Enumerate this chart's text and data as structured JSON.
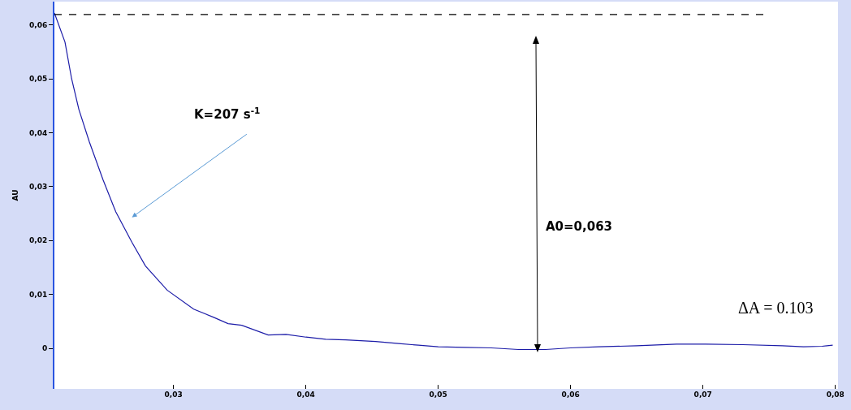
{
  "chart_data": {
    "type": "line",
    "ylabel": "AU",
    "x": [
      0.021,
      0.0218,
      0.0223,
      0.02285,
      0.02364,
      0.02467,
      0.02564,
      0.02685,
      0.02788,
      0.02952,
      0.03152,
      0.033,
      0.03412,
      0.03515,
      0.03715,
      0.0385,
      0.04,
      0.0415,
      0.043,
      0.04527,
      0.047,
      0.0485,
      0.05,
      0.052,
      0.054,
      0.05606,
      0.0581,
      0.06,
      0.0621,
      0.065,
      0.068,
      0.0702,
      0.073,
      0.076,
      0.0776,
      0.079,
      0.0798
    ],
    "series": [
      {
        "color": "#1c1ca8",
        "values": [
          0.0622,
          0.0568,
          0.05,
          0.0443,
          0.0383,
          0.0313,
          0.0253,
          0.0197,
          0.0153,
          0.0108,
          0.0073,
          0.0058,
          0.0046,
          0.0043,
          0.0025,
          0.0026,
          0.0021,
          0.0017,
          0.0016,
          0.0013,
          0.0009,
          0.0006,
          0.0003,
          0.0002,
          0.0001,
          -0.0002,
          -0.0002,
          0.0001,
          0.0003,
          0.0005,
          0.0008,
          0.0008,
          0.0007,
          0.0005,
          0.0003,
          0.0004,
          0.0006
        ]
      }
    ],
    "xlim": [
      0.021,
      0.0802
    ],
    "ylim": [
      -0.0075,
      0.0643
    ],
    "xticks": [
      {
        "value": 0.03,
        "label": "0,03"
      },
      {
        "value": 0.04,
        "label": "0,04"
      },
      {
        "value": 0.05,
        "label": "0,05"
      },
      {
        "value": 0.06,
        "label": "0,06"
      },
      {
        "value": 0.07,
        "label": "0,07"
      },
      {
        "value": 0.08,
        "label": "0,08"
      }
    ],
    "yticks": [
      0,
      {
        "value": 0.01,
        "label": "0,01"
      },
      {
        "value": 0.02,
        "label": "0,02"
      },
      {
        "value": 0.03,
        "label": "0,03"
      },
      {
        "value": 0.04,
        "label": "0,04"
      },
      {
        "value": 0.05,
        "label": "0,05"
      },
      {
        "value": 0.06,
        "label": "0,06"
      }
    ],
    "ref_lines": [
      {
        "axis": "y",
        "value": 0.0619,
        "color": "#000000",
        "line_style": "dashed"
      }
    ],
    "annotations": [
      "K=207 s$^{-1}$",
      "A0=0,063",
      "ΔA = 0.103"
    ],
    "grid": false,
    "legend": false,
    "marker": "none",
    "line_style": "solid"
  }
}
